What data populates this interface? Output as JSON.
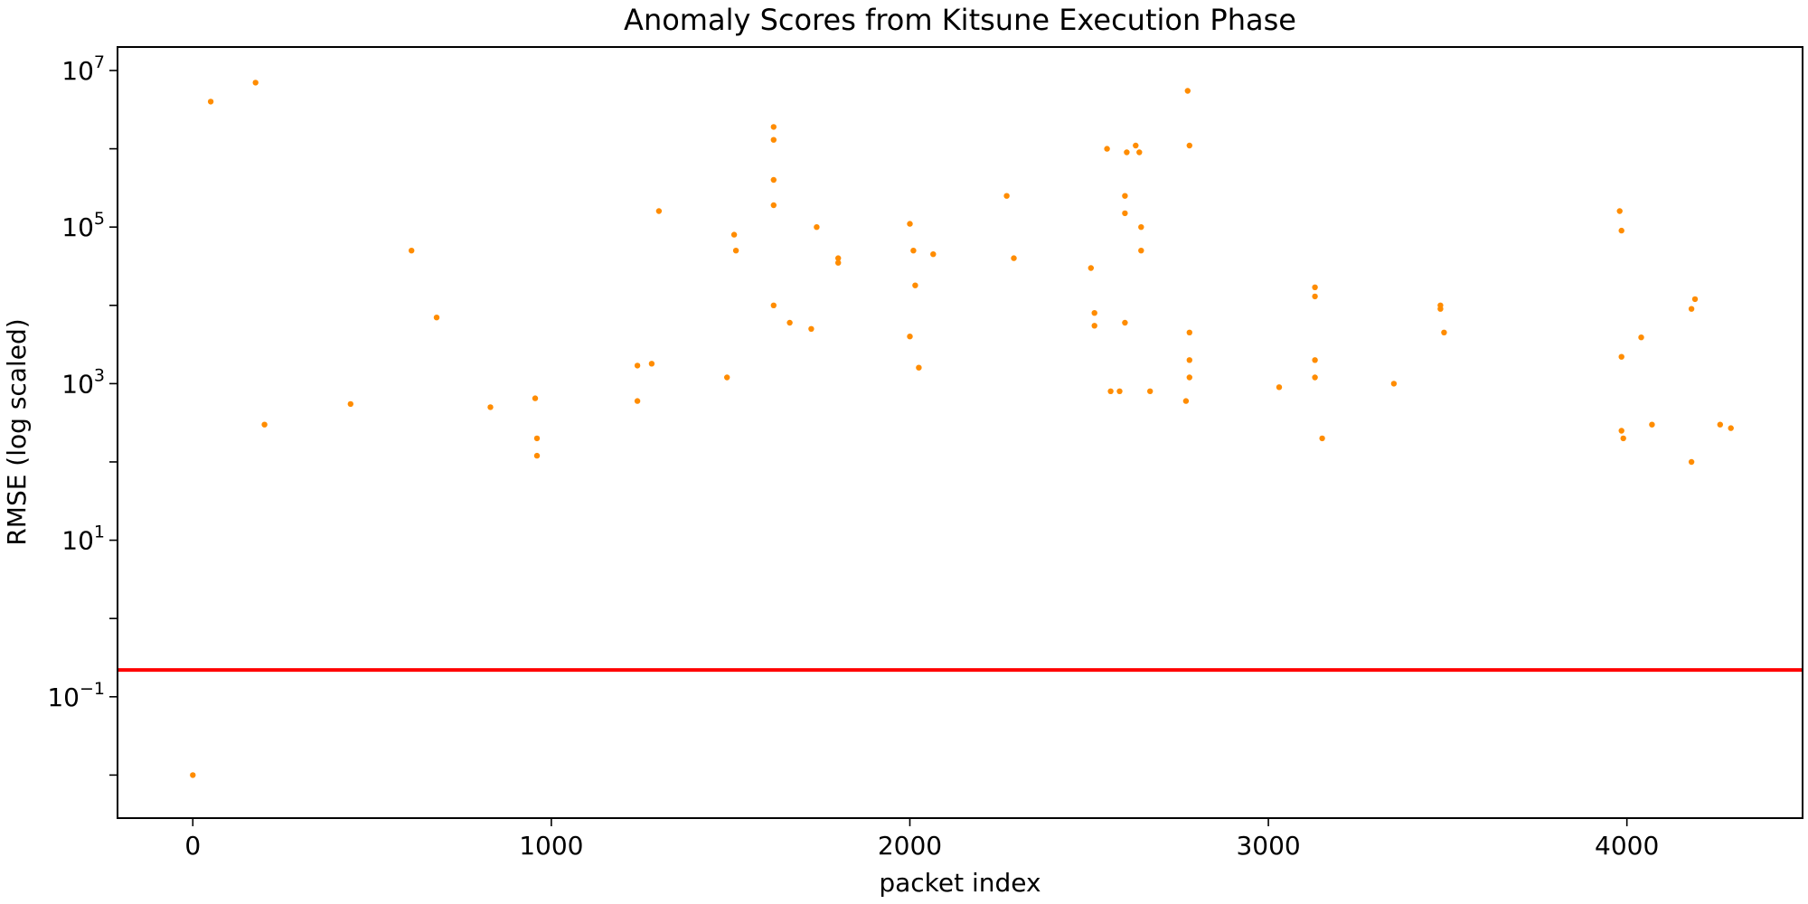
{
  "chart_data": {
    "type": "scatter",
    "title": "Anomaly Scores from Kitsune Execution Phase",
    "xlabel": "packet index",
    "ylabel": "RMSE (log scaled)",
    "xlim": [
      -210,
      4490
    ],
    "ylim_log10": [
      -2.55,
      7.3
    ],
    "yscale": "log",
    "x_ticks": [
      0,
      1000,
      2000,
      3000,
      4000
    ],
    "x_tick_labels": [
      "0",
      "1000",
      "2000",
      "3000",
      "4000"
    ],
    "y_ticks": [
      {
        "value_log10": -1,
        "base": "10",
        "exp": "−1"
      },
      {
        "value_log10": 1,
        "base": "10",
        "exp": "1"
      },
      {
        "value_log10": 3,
        "base": "10",
        "exp": "3"
      },
      {
        "value_log10": 5,
        "base": "10",
        "exp": "5"
      },
      {
        "value_log10": 7,
        "base": "10",
        "exp": "7"
      }
    ],
    "threshold": 0.22,
    "colors": {
      "points": "#ff8c00",
      "threshold": "#ff0000"
    },
    "series": [
      {
        "marker_color": "#ff8c00",
        "points": [
          [
            0,
            0.01
          ],
          [
            50,
            4000000
          ],
          [
            175,
            7000000
          ],
          [
            200,
            300
          ],
          [
            440,
            550
          ],
          [
            610,
            50000
          ],
          [
            680,
            7000
          ],
          [
            830,
            500
          ],
          [
            955,
            650
          ],
          [
            960,
            200
          ],
          [
            960,
            120
          ],
          [
            1240,
            1700
          ],
          [
            1240,
            600
          ],
          [
            1280,
            1800
          ],
          [
            1300,
            160000
          ],
          [
            1490,
            1200
          ],
          [
            1510,
            80000
          ],
          [
            1515,
            50000
          ],
          [
            1620,
            1900000
          ],
          [
            1620,
            1300000
          ],
          [
            1620,
            400000
          ],
          [
            1620,
            190000
          ],
          [
            1620,
            10000
          ],
          [
            1665,
            6000
          ],
          [
            1725,
            5000
          ],
          [
            1740,
            100000
          ],
          [
            1800,
            40000
          ],
          [
            1800,
            35000
          ],
          [
            2000,
            110000
          ],
          [
            2000,
            4000
          ],
          [
            2010,
            50000
          ],
          [
            2015,
            18000
          ],
          [
            2025,
            1600
          ],
          [
            2065,
            45000
          ],
          [
            2270,
            250000
          ],
          [
            2290,
            40000
          ],
          [
            2505,
            30000
          ],
          [
            2515,
            8000
          ],
          [
            2515,
            5500
          ],
          [
            2550,
            1000000
          ],
          [
            2560,
            800
          ],
          [
            2585,
            800
          ],
          [
            2600,
            250000
          ],
          [
            2600,
            150000
          ],
          [
            2600,
            6000
          ],
          [
            2605,
            900000
          ],
          [
            2630,
            1100000
          ],
          [
            2640,
            900000
          ],
          [
            2645,
            100000
          ],
          [
            2645,
            50000
          ],
          [
            2670,
            800
          ],
          [
            2775,
            5500000
          ],
          [
            2780,
            1100000
          ],
          [
            2780,
            4500
          ],
          [
            2780,
            2000
          ],
          [
            2780,
            1200
          ],
          [
            2770,
            600
          ],
          [
            3030,
            900
          ],
          [
            3130,
            17000
          ],
          [
            3130,
            13000
          ],
          [
            3130,
            2000
          ],
          [
            3130,
            1200
          ],
          [
            3150,
            200
          ],
          [
            3350,
            1000
          ],
          [
            3480,
            10000
          ],
          [
            3480,
            9000
          ],
          [
            3490,
            4500
          ],
          [
            3980,
            160000
          ],
          [
            3985,
            90000
          ],
          [
            3985,
            2200
          ],
          [
            3985,
            250
          ],
          [
            3990,
            200
          ],
          [
            4040,
            3900
          ],
          [
            4180,
            9000
          ],
          [
            4190,
            12000
          ],
          [
            4070,
            300
          ],
          [
            4180,
            100
          ],
          [
            4260,
            300
          ],
          [
            4290,
            270
          ]
        ]
      }
    ]
  }
}
